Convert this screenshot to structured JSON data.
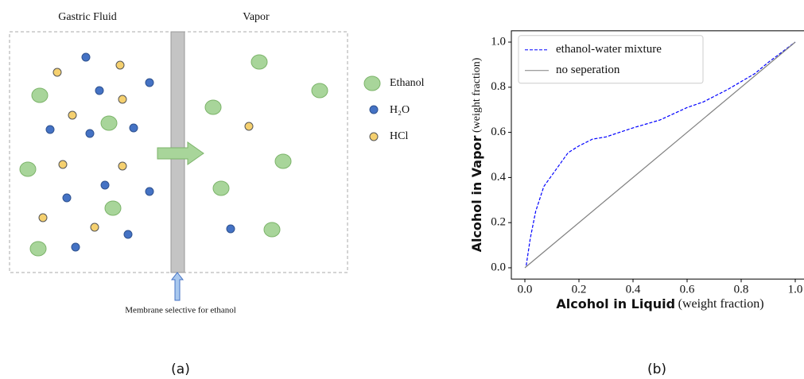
{
  "diagram": {
    "left_title": "Gastric Fluid",
    "right_title": "Vapor",
    "legend": [
      "Ethanol",
      "H₂O",
      "HCl"
    ],
    "membrane_label": "Membrane selective for ethanol"
  },
  "captions": [
    "(a)",
    "(b)"
  ],
  "chart_data": {
    "type": "line",
    "xlabel": "Alcohol in Liquid",
    "xlabel_unit": "(weight fraction)",
    "ylabel": "Alcohol in Vapor",
    "ylabel_unit": "(weight fraction)",
    "xlim": [
      -0.05,
      1.05
    ],
    "ylim": [
      -0.05,
      1.05
    ],
    "xticks": [
      {
        "value": 0,
        "label": "0.0"
      },
      0.2,
      0.4,
      0.6,
      0.8,
      {
        "value": 1,
        "label": "1.0"
      }
    ],
    "yticks": [
      {
        "value": 0,
        "label": "0.0"
      },
      0.2,
      0.4,
      0.6,
      0.8,
      {
        "value": 1,
        "label": "1.0"
      }
    ],
    "legend_position": "upper left",
    "series": [
      {
        "name": "ethanol-water mixture",
        "color": "#0000ff",
        "dashed": true,
        "x": [
          0.005,
          0.02,
          0.04,
          0.07,
          0.1,
          0.16,
          0.2,
          0.25,
          0.3,
          0.4,
          0.5,
          0.6,
          0.66,
          0.75,
          0.85,
          0.9,
          1.0
        ],
        "values": [
          0.01,
          0.13,
          0.25,
          0.36,
          0.41,
          0.51,
          0.54,
          0.57,
          0.58,
          0.62,
          0.655,
          0.71,
          0.735,
          0.79,
          0.86,
          0.91,
          1.0
        ]
      },
      {
        "name": "no seperation",
        "color": "#808080",
        "dashed": false,
        "x": [
          0,
          1
        ],
        "values": [
          0,
          1
        ]
      }
    ]
  }
}
